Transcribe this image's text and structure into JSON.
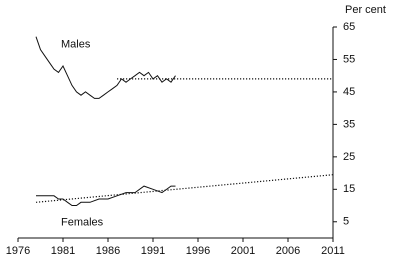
{
  "chart_data": {
    "type": "line",
    "y_axis_label": "Per cent",
    "xlim": [
      1976,
      2011
    ],
    "xticks": [
      1976,
      1981,
      1986,
      1991,
      1996,
      2001,
      2006,
      2011
    ],
    "ylim": [
      0,
      65
    ],
    "yticks": [
      5,
      15,
      25,
      35,
      45,
      55,
      65
    ],
    "series": [
      {
        "name": "Males",
        "color": "#111111",
        "dashed": false,
        "x": [
          1978,
          1978.5,
          1979,
          1979.5,
          1980,
          1980.5,
          1981,
          1981.5,
          1982,
          1982.5,
          1983,
          1983.5,
          1984,
          1984.5,
          1985,
          1985.5,
          1986,
          1986.5,
          1987,
          1987.5,
          1988,
          1988.5,
          1989,
          1989.5,
          1990,
          1990.5,
          1991,
          1991.5,
          1992,
          1992.5,
          1993,
          1993.5
        ],
        "values": [
          62,
          58,
          56,
          54,
          52,
          51,
          53,
          50,
          47,
          45,
          44,
          45,
          44,
          43,
          43,
          44,
          45,
          46,
          47,
          49,
          48,
          49,
          50,
          51,
          50,
          51,
          49,
          50,
          48,
          49,
          48,
          50
        ]
      },
      {
        "color": "#111111",
        "dashed": true,
        "x": [
          1987,
          2011
        ],
        "values": [
          49,
          49
        ]
      },
      {
        "name": "Females",
        "color": "#111111",
        "dashed": false,
        "x": [
          1978,
          1979,
          1980,
          1980.5,
          1981,
          1981.5,
          1982,
          1982.5,
          1983,
          1984,
          1985,
          1986,
          1987,
          1988,
          1989,
          1990,
          1991,
          1992,
          1993,
          1993.5
        ],
        "values": [
          13,
          13,
          13,
          12,
          12,
          11,
          10,
          10,
          11,
          11,
          12,
          12,
          13,
          14,
          14,
          16,
          15,
          14,
          16,
          16
        ]
      },
      {
        "color": "#111111",
        "dashed": true,
        "x": [
          1978,
          2011
        ],
        "values": [
          11,
          19.5
        ]
      }
    ]
  }
}
